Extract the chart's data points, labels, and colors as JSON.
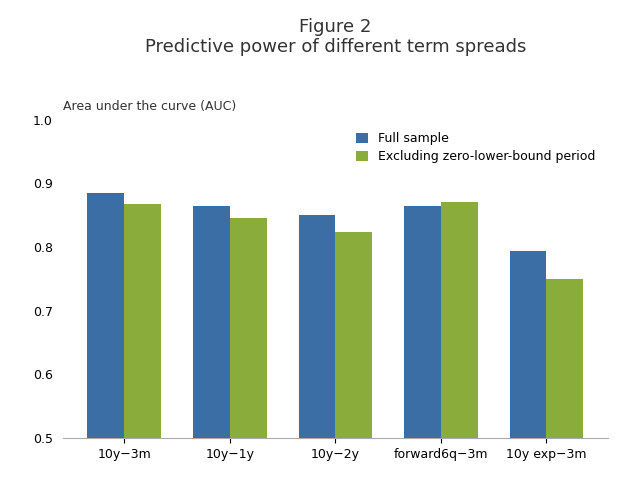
{
  "title_line1": "Figure 2",
  "title_line2": "Predictive power of different term spreads",
  "ylabel": "Area under the curve (AUC)",
  "categories": [
    "10y−3m",
    "10y−1y",
    "10y−2y",
    "forward6q−3m",
    "10y exp−3m"
  ],
  "full_sample": [
    0.885,
    0.865,
    0.85,
    0.865,
    0.793
  ],
  "excluding_zlb": [
    0.868,
    0.845,
    0.823,
    0.87,
    0.75
  ],
  "color_full": "#3a6ea5",
  "color_excl": "#8aac3a",
  "ylim_min": 0.5,
  "ylim_max": 1.0,
  "yticks": [
    0.5,
    0.6,
    0.7,
    0.8,
    0.9,
    1.0
  ],
  "legend_full": "Full sample",
  "legend_excl": "Excluding zero-lower-bound period",
  "bar_width": 0.35,
  "background_color": "#ffffff",
  "title_fontsize": 13,
  "axis_label_fontsize": 9,
  "tick_fontsize": 9,
  "legend_fontsize": 9
}
